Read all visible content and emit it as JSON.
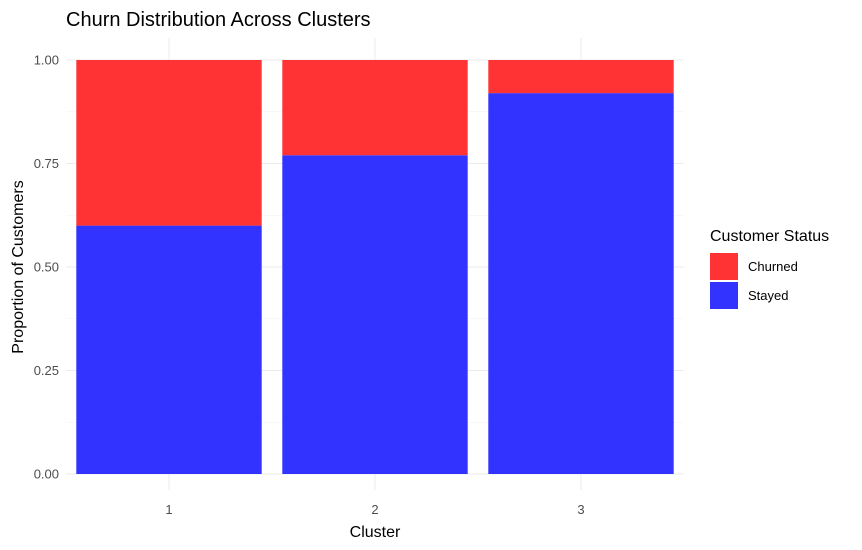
{
  "chart_data": {
    "type": "bar",
    "stacked": true,
    "title": "Churn Distribution Across Clusters",
    "xlabel": "Cluster",
    "ylabel": "Proportion of Customers",
    "categories": [
      "1",
      "2",
      "3"
    ],
    "yticks": [
      "0.00",
      "0.25",
      "0.50",
      "0.75",
      "1.00"
    ],
    "ylim": [
      0,
      1
    ],
    "grid": true,
    "legend": {
      "title": "Customer Status",
      "placement": "right"
    },
    "series": [
      {
        "name": "Stayed",
        "color": "#3333ff",
        "values": [
          0.6,
          0.77,
          0.92
        ]
      },
      {
        "name": "Churned",
        "color": "#ff3333",
        "values": [
          0.4,
          0.23,
          0.08
        ]
      }
    ],
    "legend_order": [
      "Churned",
      "Stayed"
    ]
  }
}
